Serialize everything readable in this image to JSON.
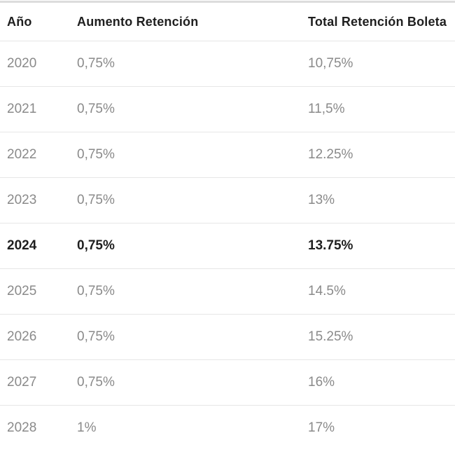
{
  "table": {
    "columns": [
      {
        "key": "ano",
        "label": "Año"
      },
      {
        "key": "aumento",
        "label": "Aumento Retención"
      },
      {
        "key": "total",
        "label": "Total Retención Boleta"
      }
    ],
    "rows": [
      {
        "ano": "2020",
        "aumento": "0,75%",
        "total": "10,75%",
        "highlight": false
      },
      {
        "ano": "2021",
        "aumento": "0,75%",
        "total": "11,5%",
        "highlight": false
      },
      {
        "ano": "2022",
        "aumento": "0,75%",
        "total": "12.25%",
        "highlight": false
      },
      {
        "ano": "2023",
        "aumento": "0,75%",
        "total": "13%",
        "highlight": false
      },
      {
        "ano": "2024",
        "aumento": "0,75%",
        "total": "13.75%",
        "highlight": true
      },
      {
        "ano": "2025",
        "aumento": "0,75%",
        "total": "14.5%",
        "highlight": false
      },
      {
        "ano": "2026",
        "aumento": "0,75%",
        "total": "15.25%",
        "highlight": false
      },
      {
        "ano": "2027",
        "aumento": "0,75%",
        "total": "16%",
        "highlight": false
      },
      {
        "ano": "2028",
        "aumento": "1%",
        "total": "17%",
        "highlight": false
      }
    ],
    "highlighted_year": "2024"
  },
  "chart_data": {
    "type": "table",
    "columns": [
      "Año",
      "Aumento Retención",
      "Total Retención Boleta"
    ],
    "rows": [
      [
        "2020",
        "0,75%",
        "10,75%"
      ],
      [
        "2021",
        "0,75%",
        "11,5%"
      ],
      [
        "2022",
        "0,75%",
        "12.25%"
      ],
      [
        "2023",
        "0,75%",
        "13%"
      ],
      [
        "2024",
        "0,75%",
        "13.75%"
      ],
      [
        "2025",
        "0,75%",
        "14.5%"
      ],
      [
        "2026",
        "0,75%",
        "15.25%"
      ],
      [
        "2027",
        "0,75%",
        "16%"
      ],
      [
        "2028",
        "1%",
        "17%"
      ]
    ],
    "highlighted_row": "2024"
  },
  "colors": {
    "background": "#ffffff",
    "header_text": "#1f1f1f",
    "row_text": "#8a8a8a",
    "highlight_text": "#1f1f1f",
    "divider": "#e6e6e6",
    "top_line": "#dcdcdc"
  }
}
